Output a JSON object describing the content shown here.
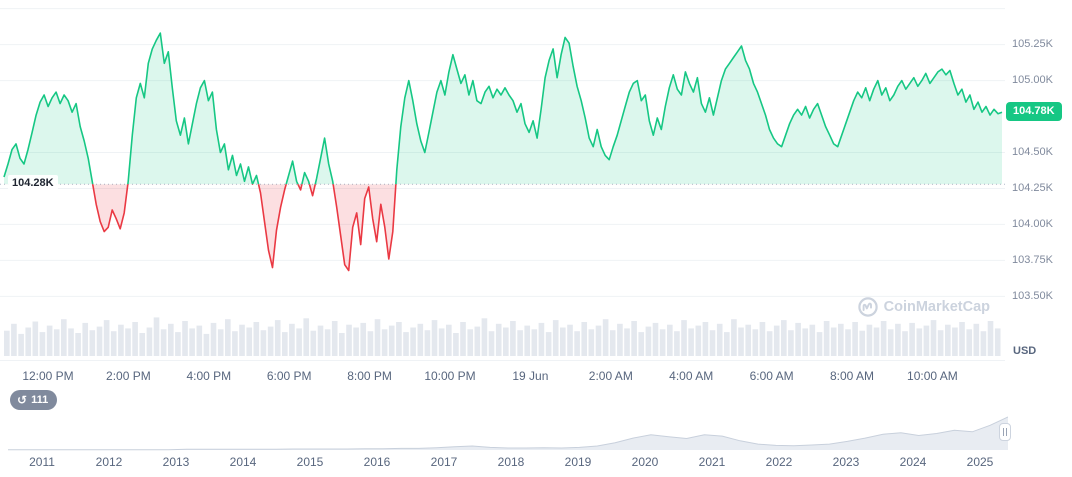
{
  "chart_data": {
    "type": "area",
    "title": "",
    "y_axis_unit": "USD",
    "ylim": [
      103.44,
      105.56
    ],
    "grid": true,
    "baseline": {
      "label": "104.28K",
      "value": 104.28
    },
    "last_price": {
      "label": "104.78K",
      "value": 104.78
    },
    "y_ticks": [
      {
        "label": "",
        "value": 105.5
      },
      {
        "label": "105.25K",
        "value": 105.25
      },
      {
        "label": "105.00K",
        "value": 105.0
      },
      {
        "label": "104.50K",
        "value": 104.5
      },
      {
        "label": "104.25K",
        "value": 104.25
      },
      {
        "label": "104.00K",
        "value": 104.0
      },
      {
        "label": "103.75K",
        "value": 103.75
      },
      {
        "label": "103.50K",
        "value": 103.5
      }
    ],
    "x_ticks": [
      "12:00 PM",
      "2:00 PM",
      "4:00 PM",
      "6:00 PM",
      "8:00 PM",
      "10:00 PM",
      "19 Jun",
      "2:00 AM",
      "4:00 AM",
      "6:00 AM",
      "8:00 AM",
      "10:00 AM"
    ],
    "prices": [
      104.33,
      104.42,
      104.52,
      104.56,
      104.46,
      104.42,
      104.52,
      104.64,
      104.76,
      104.85,
      104.9,
      104.82,
      104.88,
      104.92,
      104.84,
      104.9,
      104.86,
      104.78,
      104.84,
      104.68,
      104.58,
      104.46,
      104.3,
      104.14,
      104.02,
      103.95,
      103.98,
      104.1,
      104.04,
      103.97,
      104.08,
      104.3,
      104.62,
      104.88,
      104.98,
      104.88,
      105.12,
      105.22,
      105.28,
      105.33,
      105.12,
      105.2,
      104.95,
      104.72,
      104.62,
      104.74,
      104.56,
      104.7,
      104.84,
      104.95,
      105.0,
      104.86,
      104.92,
      104.66,
      104.5,
      104.56,
      104.38,
      104.48,
      104.34,
      104.42,
      104.3,
      104.4,
      104.28,
      104.34,
      104.22,
      104.02,
      103.82,
      103.7,
      103.96,
      104.12,
      104.24,
      104.34,
      104.44,
      104.3,
      104.24,
      104.36,
      104.3,
      104.2,
      104.32,
      104.46,
      104.6,
      104.42,
      104.3,
      104.12,
      103.92,
      103.72,
      103.68,
      103.98,
      104.08,
      103.86,
      104.18,
      104.26,
      104.04,
      103.88,
      104.14,
      103.98,
      103.76,
      103.95,
      104.38,
      104.68,
      104.88,
      105.0,
      104.86,
      104.7,
      104.58,
      104.5,
      104.64,
      104.78,
      104.92,
      105.0,
      104.9,
      105.06,
      105.18,
      105.08,
      104.98,
      105.04,
      104.9,
      105.0,
      104.86,
      104.84,
      104.92,
      104.96,
      104.88,
      104.94,
      104.9,
      104.95,
      104.9,
      104.86,
      104.78,
      104.84,
      104.7,
      104.64,
      104.72,
      104.6,
      104.8,
      105.02,
      105.14,
      105.22,
      105.02,
      105.18,
      105.3,
      105.26,
      105.1,
      104.96,
      104.86,
      104.74,
      104.6,
      104.54,
      104.66,
      104.54,
      104.48,
      104.45,
      104.54,
      104.62,
      104.72,
      104.82,
      104.92,
      104.98,
      105.0,
      104.86,
      104.9,
      104.72,
      104.62,
      104.74,
      104.66,
      104.82,
      104.95,
      105.04,
      104.94,
      104.9,
      105.06,
      104.98,
      104.92,
      105.02,
      104.84,
      104.78,
      104.88,
      104.76,
      104.88,
      105.0,
      105.08,
      105.12,
      105.16,
      105.2,
      105.24,
      105.14,
      105.08,
      104.98,
      104.92,
      104.84,
      104.76,
      104.66,
      104.6,
      104.56,
      104.54,
      104.62,
      104.7,
      104.76,
      104.8,
      104.76,
      104.82,
      104.74,
      104.8,
      104.84,
      104.76,
      104.68,
      104.62,
      104.56,
      104.54,
      104.62,
      104.7,
      104.78,
      104.86,
      104.92,
      104.88,
      104.95,
      104.86,
      104.94,
      105.0,
      104.9,
      104.95,
      104.86,
      104.9,
      104.96,
      105.0,
      104.94,
      104.98,
      105.02,
      104.96,
      105.0,
      105.05,
      104.98,
      105.02,
      105.06,
      105.08,
      105.04,
      105.07,
      104.98,
      104.9,
      104.94,
      104.85,
      104.9,
      104.8,
      104.85,
      104.78,
      104.82,
      104.76,
      104.8,
      104.77,
      104.78
    ],
    "volume": [
      0.55,
      0.7,
      0.48,
      0.62,
      0.75,
      0.52,
      0.66,
      0.58,
      0.8,
      0.6,
      0.5,
      0.72,
      0.56,
      0.64,
      0.78,
      0.54,
      0.68,
      0.6,
      0.74,
      0.5,
      0.62,
      0.84,
      0.58,
      0.7,
      0.52,
      0.76,
      0.6,
      0.66,
      0.48,
      0.72,
      0.58,
      0.8,
      0.54,
      0.68,
      0.62,
      0.74,
      0.56,
      0.64,
      0.78,
      0.52,
      0.7,
      0.6,
      0.82,
      0.55,
      0.66,
      0.58,
      0.76,
      0.5,
      0.68,
      0.62,
      0.72,
      0.54,
      0.8,
      0.58,
      0.66,
      0.74,
      0.52,
      0.62,
      0.7,
      0.56,
      0.78,
      0.6,
      0.68,
      0.5,
      0.74,
      0.58,
      0.64,
      0.82,
      0.54,
      0.7,
      0.62,
      0.76,
      0.56,
      0.66,
      0.58,
      0.72,
      0.52,
      0.78,
      0.62,
      0.68,
      0.54,
      0.74,
      0.58,
      0.66,
      0.8,
      0.56,
      0.7,
      0.6,
      0.76,
      0.52,
      0.64,
      0.72,
      0.58,
      0.68,
      0.54,
      0.78,
      0.6,
      0.66,
      0.74,
      0.56,
      0.7,
      0.52,
      0.8,
      0.62,
      0.68,
      0.58,
      0.74,
      0.54,
      0.66,
      0.78,
      0.56,
      0.72,
      0.6,
      0.68,
      0.52,
      0.76,
      0.62,
      0.7,
      0.58,
      0.74,
      0.55,
      0.68,
      0.62,
      0.76,
      0.58,
      0.7,
      0.54,
      0.72,
      0.6,
      0.66,
      0.78,
      0.56,
      0.68,
      0.62,
      0.74,
      0.58,
      0.7,
      0.54,
      0.76,
      0.6
    ],
    "colors": {
      "up": "#16c784",
      "down": "#ea3943",
      "up_fill": "rgba(22,199,132,0.15)",
      "down_fill": "rgba(234,57,67,0.16)",
      "grid": "#eff2f5",
      "axis_text": "#808a9d",
      "volume": "#e4e8ee",
      "baseline": "#b0b8c9"
    }
  },
  "watermark": {
    "label": "CoinMarketCap",
    "icon": "coinmarketcap-logo",
    "color": "#ccd3de"
  },
  "history_badge": {
    "count": "111",
    "icon": "history-arrow",
    "icon_glyph": "↺"
  },
  "timeline": {
    "years": [
      "2011",
      "2012",
      "2013",
      "2014",
      "2015",
      "2016",
      "2017",
      "2018",
      "2019",
      "2020",
      "2021",
      "2022",
      "2023",
      "2024",
      "2025"
    ],
    "series": [
      0.01,
      0.01,
      0.01,
      0.01,
      0.01,
      0.01,
      0.01,
      0.01,
      0.01,
      0.01,
      0.02,
      0.02,
      0.02,
      0.02,
      0.02,
      0.02,
      0.03,
      0.03,
      0.03,
      0.03,
      0.04,
      0.04,
      0.05,
      0.05,
      0.07,
      0.1,
      0.12,
      0.08,
      0.06,
      0.06,
      0.07,
      0.06,
      0.08,
      0.12,
      0.22,
      0.36,
      0.46,
      0.4,
      0.35,
      0.46,
      0.42,
      0.28,
      0.18,
      0.14,
      0.13,
      0.15,
      0.18,
      0.26,
      0.36,
      0.48,
      0.52,
      0.44,
      0.5,
      0.6,
      0.55,
      0.75,
      1.0
    ],
    "fill": "#e8ecf2",
    "line_color": "#c8d0dc"
  }
}
